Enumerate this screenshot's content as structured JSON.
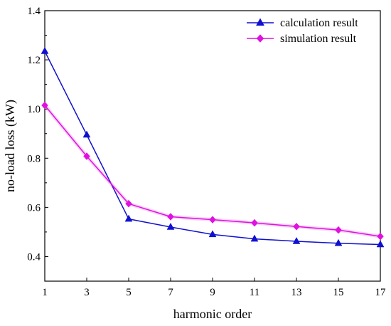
{
  "chart_data": {
    "type": "line",
    "title": "",
    "xlabel": "harmonic order",
    "ylabel": "no-load loss (kW)",
    "x": [
      1,
      3,
      5,
      7,
      9,
      11,
      13,
      15,
      17
    ],
    "xlim": [
      1,
      17
    ],
    "ylim": [
      0.3,
      1.4
    ],
    "xticks": [
      "1",
      "3",
      "5",
      "7",
      "9",
      "11",
      "13",
      "15",
      "17"
    ],
    "yticks": [
      "0.4",
      "0.6",
      "0.8",
      "1.0",
      "1.2",
      "1.4"
    ],
    "grid": false,
    "legend_position": "top-right",
    "series": [
      {
        "name": "calculation result",
        "color": "#1010d0",
        "marker": "triangle",
        "values": [
          1.235,
          0.895,
          0.553,
          0.52,
          0.49,
          0.472,
          0.462,
          0.454,
          0.449
        ]
      },
      {
        "name": "simulation result",
        "color": "#e010e0",
        "marker": "diamond",
        "values": [
          1.015,
          0.808,
          0.615,
          0.562,
          0.55,
          0.537,
          0.522,
          0.508,
          0.482
        ]
      }
    ]
  }
}
